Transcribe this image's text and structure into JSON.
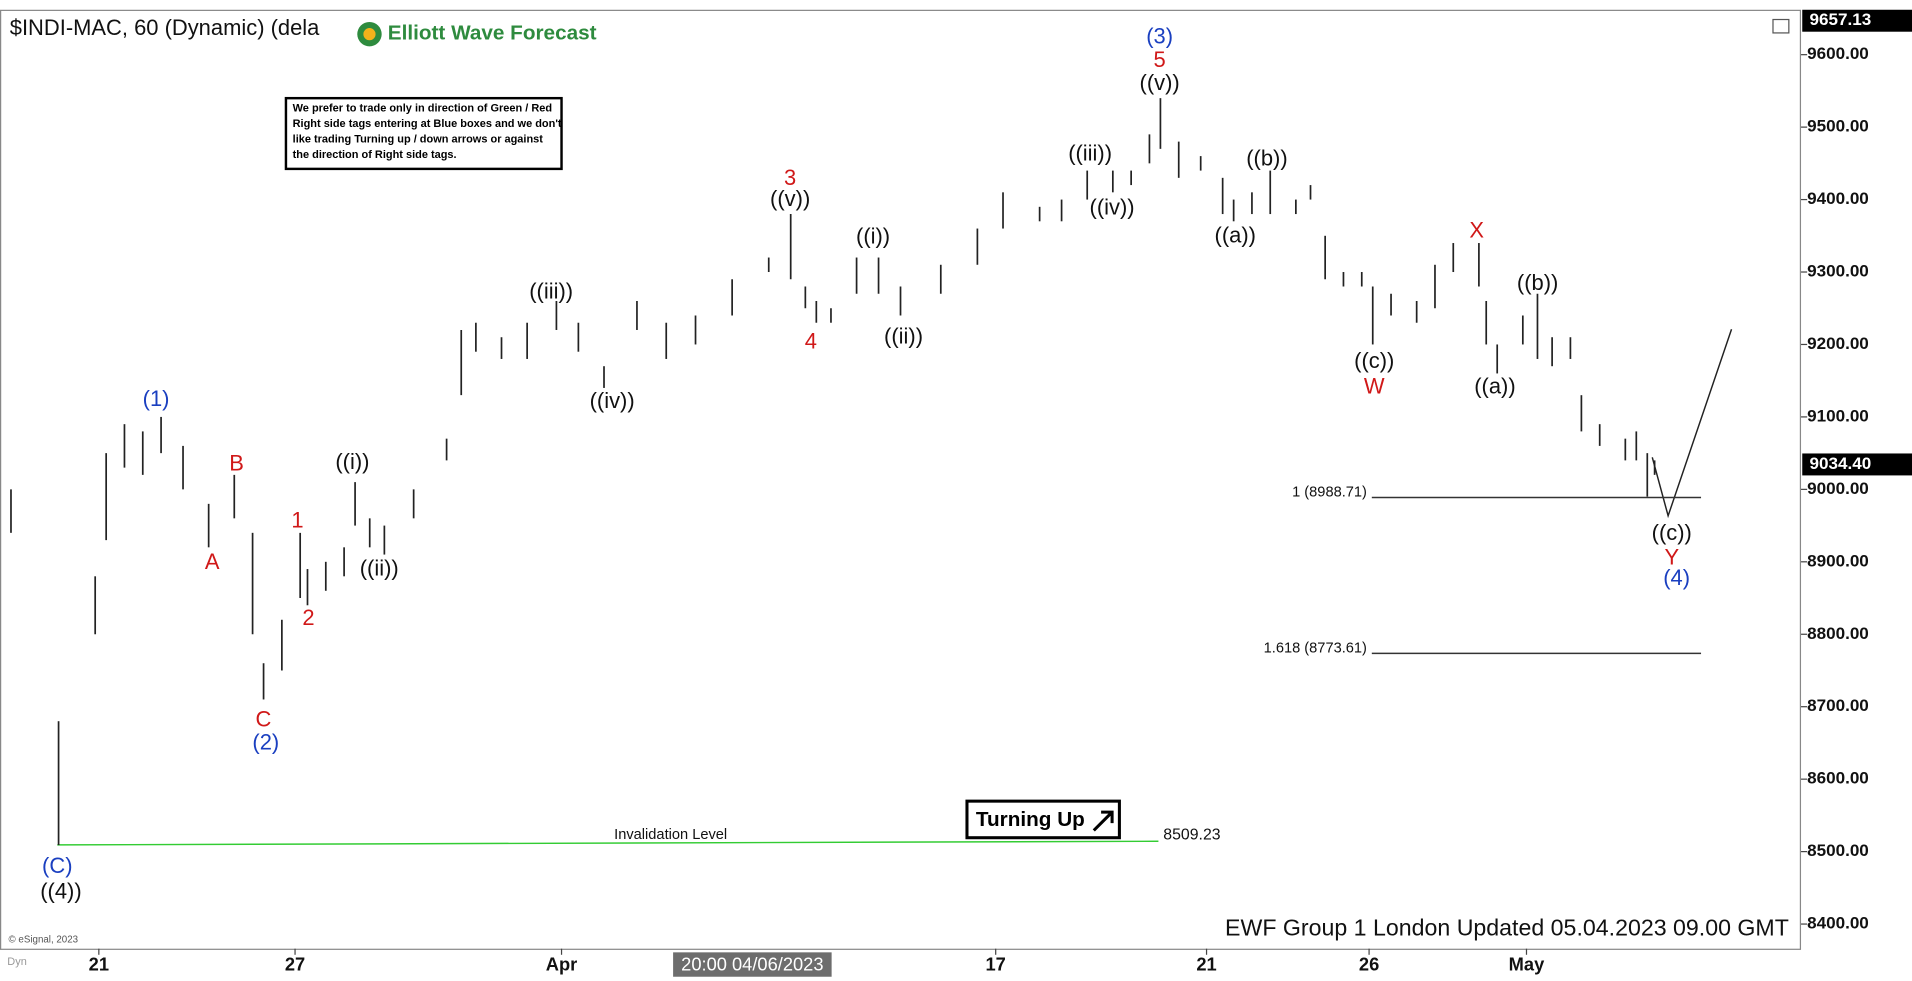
{
  "chart_data": {
    "type": "ohlc",
    "title": "$INDI-MAC, 60 (Dynamic) (dela",
    "brand": "Elliott Wave Forecast",
    "note": [
      "We prefer to trade only in direction of Green / Red",
      "Right side tags entering at Blue boxes and we don't",
      "like trading Turning up / down arrows or against",
      "the direction of Right side tags."
    ],
    "signal": "Turning Up",
    "footer": "EWF Group 1 London Updated 05.04.2023 09.00 GMT",
    "copyright": "© eSignal, 2023",
    "corner_label": "Dyn",
    "crosshair_label": "20:00 04/06/2023",
    "bar_color": "#222222",
    "x": [
      0.5,
      7,
      12,
      13.5,
      16,
      18.5,
      21,
      24,
      27.5,
      31,
      33.5,
      35,
      37.5,
      40,
      41,
      43.5,
      46,
      47.5,
      49.5,
      51.5,
      55.5,
      60,
      62,
      64,
      67.5,
      71,
      75,
      78,
      81.5,
      86,
      90,
      94,
      99,
      104,
      107,
      109,
      110.5,
      112.5,
      116,
      119,
      122,
      127.5,
      132.5,
      136,
      141,
      144,
      147.5,
      151,
      153.5,
      156,
      157.5,
      160,
      163,
      166,
      167.5,
      170,
      172.5,
      176,
      178,
      180,
      182.5,
      185,
      186.5,
      189,
      192.5,
      195,
      197.5,
      201,
      202,
      203.5,
      207,
      209,
      211,
      213.5,
      215,
      217.5,
      221,
      222.5,
      224,
      225
    ],
    "high": [
      9000,
      8680,
      8880,
      9050,
      9090,
      9080,
      9100,
      9060,
      8980,
      9020,
      8940,
      8760,
      8820,
      8940,
      8890,
      8900,
      8920,
      9010,
      8960,
      8950,
      9000,
      9070,
      9220,
      9230,
      9210,
      9230,
      9260,
      9230,
      9170,
      9260,
      9230,
      9240,
      9290,
      9320,
      9380,
      9280,
      9260,
      9250,
      9320,
      9320,
      9280,
      9310,
      9360,
      9410,
      9390,
      9400,
      9440,
      9440,
      9440,
      9490,
      9540,
      9480,
      9460,
      9430,
      9400,
      9410,
      9440,
      9400,
      9420,
      9350,
      9300,
      9300,
      9280,
      9270,
      9260,
      9310,
      9340,
      9340,
      9260,
      9200,
      9240,
      9270,
      9210,
      9210,
      9130,
      9090,
      9070,
      9080,
      9050,
      9040
    ],
    "low": [
      8940,
      8509,
      8800,
      8930,
      9030,
      9020,
      9050,
      9000,
      8920,
      8960,
      8800,
      8710,
      8750,
      8850,
      8840,
      8860,
      8880,
      8950,
      8920,
      8910,
      8960,
      9040,
      9130,
      9190,
      9180,
      9180,
      9220,
      9190,
      9140,
      9220,
      9180,
      9200,
      9240,
      9300,
      9290,
      9250,
      9230,
      9230,
      9270,
      9270,
      9240,
      9270,
      9310,
      9360,
      9370,
      9370,
      9400,
      9410,
      9420,
      9450,
      9470,
      9430,
      9440,
      9380,
      9370,
      9380,
      9380,
      9380,
      9400,
      9290,
      9280,
      9280,
      9200,
      9240,
      9230,
      9250,
      9300,
      9280,
      9200,
      9160,
      9200,
      9180,
      9170,
      9180,
      9080,
      9060,
      9040,
      9040,
      8990,
      9020
    ],
    "xlim": [
      -1,
      245
    ],
    "xticks": [
      {
        "value": 12.5,
        "label": "21"
      },
      {
        "value": 39.3,
        "label": "27"
      },
      {
        "value": 75.7,
        "label": "Apr"
      },
      {
        "value": 135,
        "label": "17"
      },
      {
        "value": 163.8,
        "label": "21"
      },
      {
        "value": 186,
        "label": "26"
      },
      {
        "value": 207.5,
        "label": "May"
      }
    ],
    "ylim": [
      8366,
      9662
    ],
    "yticks": [
      {
        "value": 8400,
        "label": "8400.00"
      },
      {
        "value": 8500,
        "label": "8500.00"
      },
      {
        "value": 8600,
        "label": "8600.00"
      },
      {
        "value": 8700,
        "label": "8700.00"
      },
      {
        "value": 8800,
        "label": "8800.00"
      },
      {
        "value": 8900,
        "label": "8900.00"
      },
      {
        "value": 9000,
        "label": "9000.00"
      },
      {
        "value": 9100,
        "label": "9100.00"
      },
      {
        "value": 9200,
        "label": "9200.00"
      },
      {
        "value": 9300,
        "label": "9300.00"
      },
      {
        "value": 9400,
        "label": "9400.00"
      },
      {
        "value": 9500,
        "label": "9500.00"
      },
      {
        "value": 9600,
        "label": "9600.00"
      }
    ],
    "high_tag": {
      "value": 9657.13,
      "label": "9657.13"
    },
    "last_price": {
      "value": 9034.4,
      "label": "9034.40"
    },
    "fib_levels": [
      {
        "value": 8988.71,
        "label": "1 (8988.71)"
      },
      {
        "value": 8773.61,
        "label": "1.618 (8773.61)"
      }
    ],
    "invalidation": {
      "value": 8509.23,
      "label": "8509.23",
      "name": "Invalidation Level",
      "color": "#33cc33"
    },
    "annotations": [
      {
        "text": "(C)",
        "color": "#1a3fc0"
      },
      {
        "text": "((4))",
        "color": "#111111"
      },
      {
        "text": "(1)",
        "color": "#1a3fc0"
      },
      {
        "text": "A",
        "color": "#d01818"
      },
      {
        "text": "B",
        "color": "#d01818"
      },
      {
        "text": "C",
        "color": "#d01818"
      },
      {
        "text": "(2)",
        "color": "#1a3fc0"
      },
      {
        "text": "1",
        "color": "#d01818"
      },
      {
        "text": "2",
        "color": "#d01818"
      },
      {
        "text": "((i))",
        "color": "#111111"
      },
      {
        "text": "((ii))",
        "color": "#111111"
      },
      {
        "text": "((iii))",
        "color": "#111111"
      },
      {
        "text": "((iv))",
        "color": "#111111"
      },
      {
        "text": "3",
        "color": "#d01818"
      },
      {
        "text": "((v))",
        "color": "#111111"
      },
      {
        "text": "4",
        "color": "#d01818"
      },
      {
        "text": "((i))",
        "color": "#111111"
      },
      {
        "text": "((ii))",
        "color": "#111111"
      },
      {
        "text": "((iii))",
        "color": "#111111"
      },
      {
        "text": "((iv))",
        "color": "#111111"
      },
      {
        "text": "(3)",
        "color": "#1a3fc0"
      },
      {
        "text": "5",
        "color": "#d01818"
      },
      {
        "text": "((v))",
        "color": "#111111"
      },
      {
        "text": "((b))",
        "color": "#111111"
      },
      {
        "text": "((a))",
        "color": "#111111"
      },
      {
        "text": "((c))",
        "color": "#111111"
      },
      {
        "text": "W",
        "color": "#d01818"
      },
      {
        "text": "X",
        "color": "#d01818"
      },
      {
        "text": "((b))",
        "color": "#111111"
      },
      {
        "text": "((a))",
        "color": "#111111"
      },
      {
        "text": "((c))",
        "color": "#111111"
      },
      {
        "text": "Y",
        "color": "#d01818"
      },
      {
        "text": "(4)",
        "color": "#1a3fc0"
      }
    ]
  }
}
